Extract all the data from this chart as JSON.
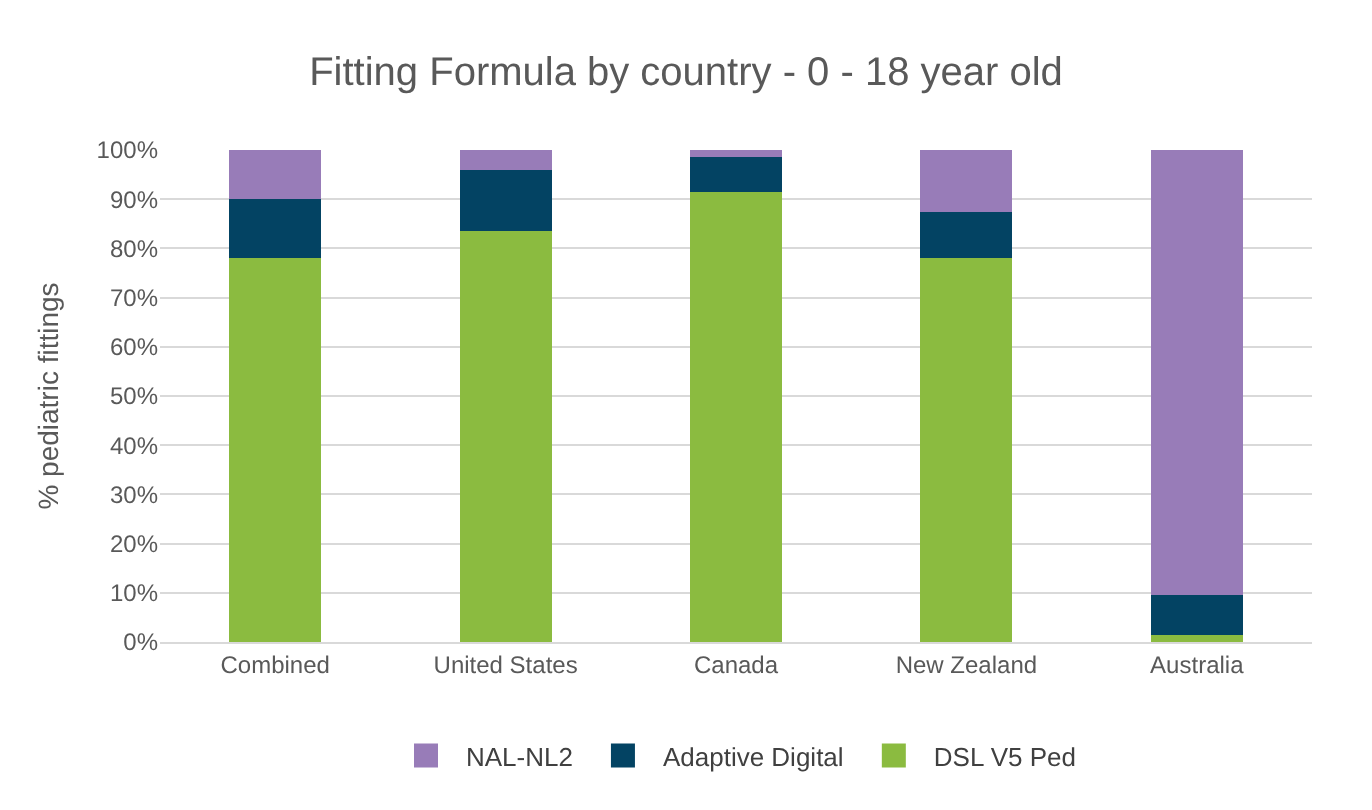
{
  "chart_data": {
    "type": "bar",
    "stacked": true,
    "title": "Fitting Formula by country - 0 - 18 year old",
    "ylabel": "% pediatric fittings",
    "categories": [
      "Combined",
      "United States",
      "Canada",
      "New Zealand",
      "Australia"
    ],
    "series": [
      {
        "name": "DSL V5 Ped",
        "color": "#8bbb40",
        "values": [
          78,
          83.5,
          91.5,
          78,
          1.5
        ]
      },
      {
        "name": "Adaptive Digital",
        "color": "#034363",
        "values": [
          12,
          12.5,
          7,
          9.5,
          8
        ]
      },
      {
        "name": "NAL-NL2",
        "color": "#987cb8",
        "values": [
          10,
          4,
          1.5,
          12.5,
          90.5
        ]
      }
    ],
    "ylim": [
      0,
      100
    ],
    "yticks": [
      {
        "value": 0,
        "label": "0%"
      },
      {
        "value": 10,
        "label": "10%"
      },
      {
        "value": 20,
        "label": "20%"
      },
      {
        "value": 30,
        "label": "30%"
      },
      {
        "value": 40,
        "label": "40%"
      },
      {
        "value": 50,
        "label": "50%"
      },
      {
        "value": 60,
        "label": "60%"
      },
      {
        "value": 70,
        "label": "70%"
      },
      {
        "value": 80,
        "label": "80%"
      },
      {
        "value": 90,
        "label": "90%"
      },
      {
        "value": 100,
        "label": "100%"
      }
    ],
    "grid": "y",
    "legend": "bottom"
  }
}
